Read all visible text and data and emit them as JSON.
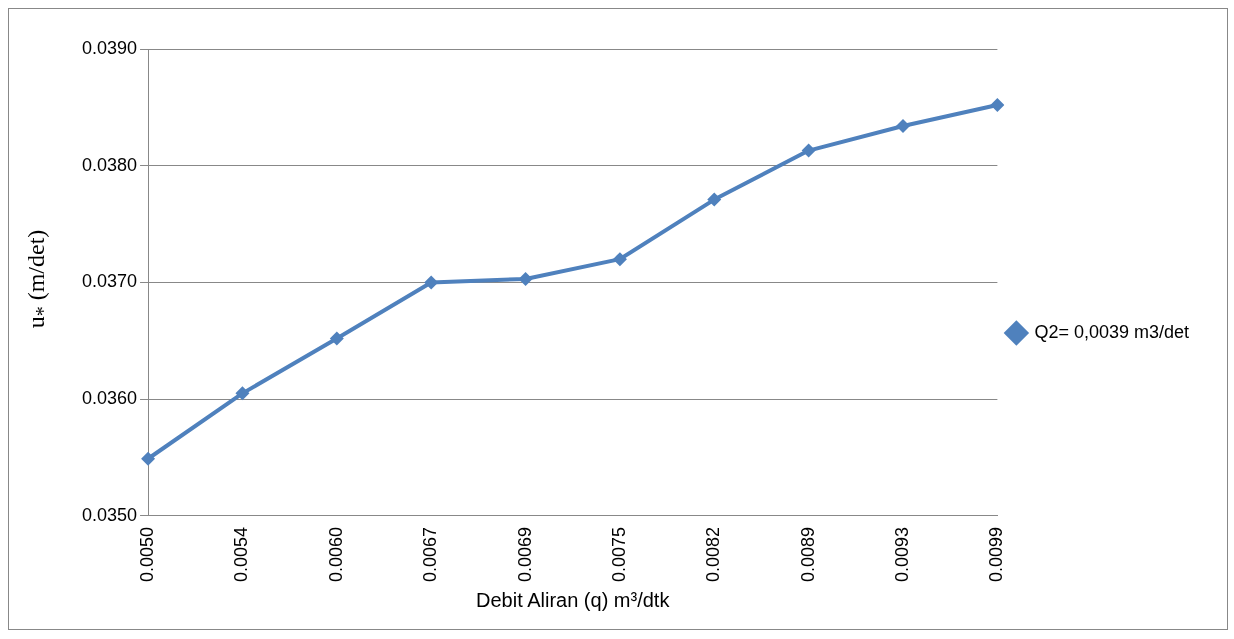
{
  "chart_data": {
    "type": "line",
    "xlabel": "Debit Aliran (q) m³/dtk",
    "ylabel": "u$_{*}$ (m/det)",
    "categories": [
      "0.0050",
      "0.0054",
      "0.0060",
      "0.0067",
      "0.0069",
      "0.0075",
      "0.0082",
      "0.0089",
      "0.0093",
      "0.0099"
    ],
    "series": [
      {
        "name": "Q2= 0,0039 m3/det",
        "color": "#4f81bd",
        "values": [
          0.03549,
          0.03605,
          0.03652,
          0.037,
          0.03703,
          0.0372,
          0.03771,
          0.03813,
          0.03834,
          0.03852
        ]
      }
    ],
    "ylim": [
      0.035,
      0.039
    ],
    "yticks": [
      {
        "value": 0.035,
        "label": "0.0350"
      },
      {
        "value": 0.036,
        "label": "0.0360"
      },
      {
        "value": 0.037,
        "label": "0.0370"
      },
      {
        "value": 0.038,
        "label": "0.0380"
      },
      {
        "value": 0.039,
        "label": "0.0390"
      }
    ],
    "grid": "y",
    "legend": "right",
    "marker": "diamond",
    "line_style": "solid"
  }
}
